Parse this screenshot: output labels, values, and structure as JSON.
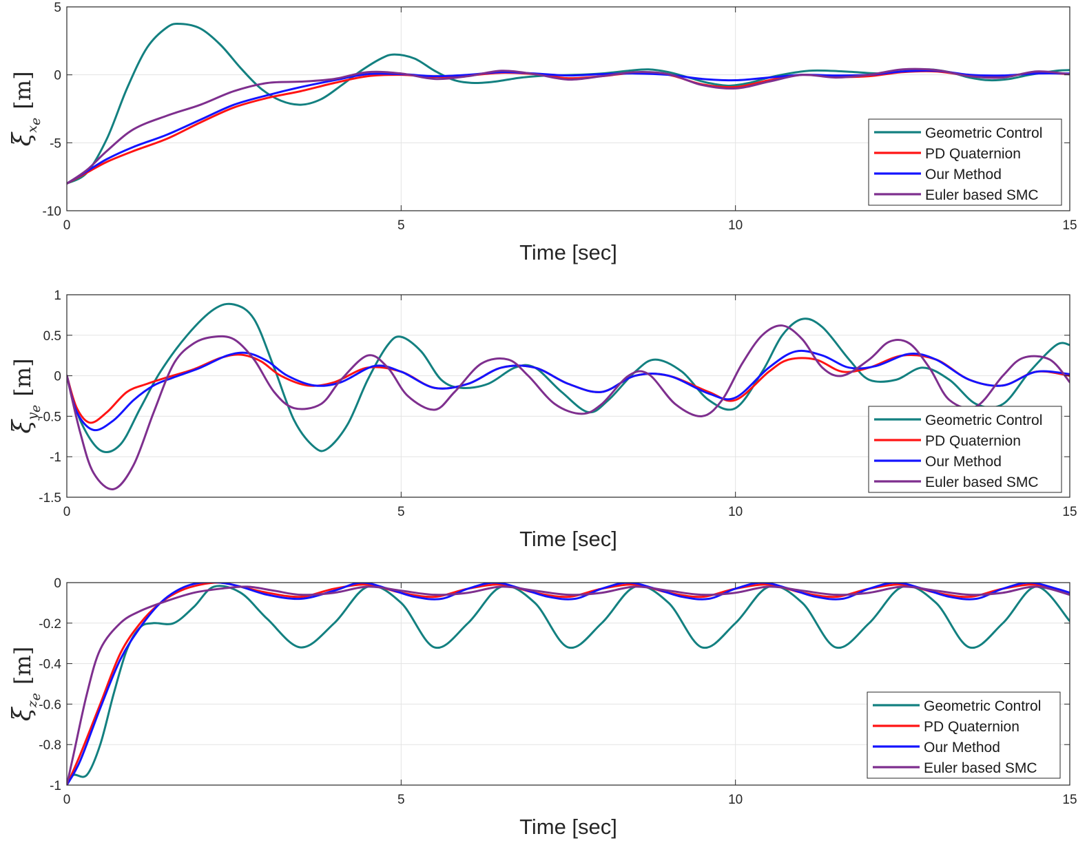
{
  "chart_data": [
    {
      "type": "line",
      "ylabel": "ξ",
      "ylabel_sub": "x_e",
      "ylabel_unit": "[m]",
      "xlabel": "Time [sec]",
      "xlim": [
        0,
        15
      ],
      "ylim": [
        -10,
        5
      ],
      "xticks": [
        0,
        5,
        10,
        15
      ],
      "yticks": [
        -10,
        -5,
        0,
        5
      ],
      "grid": true,
      "legend_position": "bottom-right",
      "series": [
        {
          "name": "Geometric Control",
          "color": "#138080",
          "x": [
            0,
            0.3,
            0.6,
            0.9,
            1.2,
            1.5,
            1.7,
            2.0,
            2.3,
            2.6,
            2.9,
            3.2,
            3.5,
            3.8,
            4.1,
            4.4,
            4.7,
            4.9,
            5.2,
            5.5,
            5.8,
            6.1,
            6.4,
            6.8,
            7.2,
            7.6,
            8.0,
            8.4,
            8.7,
            9.0,
            9.3,
            9.6,
            9.9,
            10.2,
            10.5,
            10.8,
            11.1,
            11.4,
            11.8,
            12.2,
            12.6,
            12.9,
            13.2,
            13.5,
            13.8,
            14.1,
            14.4,
            14.8,
            15.0
          ],
          "y": [
            -8,
            -7.2,
            -4.7,
            -1.0,
            2.0,
            3.5,
            3.75,
            3.4,
            2.2,
            0.5,
            -1.0,
            -1.9,
            -2.2,
            -1.8,
            -0.8,
            0.3,
            1.2,
            1.5,
            1.2,
            0.3,
            -0.4,
            -0.6,
            -0.5,
            -0.2,
            -0.05,
            0.0,
            0.1,
            0.3,
            0.4,
            0.2,
            -0.2,
            -0.6,
            -0.8,
            -0.6,
            -0.2,
            0.1,
            0.3,
            0.3,
            0.2,
            0.1,
            0.3,
            0.4,
            0.2,
            -0.2,
            -0.4,
            -0.3,
            0.0,
            0.3,
            0.35
          ]
        },
        {
          "name": "PD Quaternion",
          "color": "#ff1414",
          "x": [
            0,
            0.3,
            0.6,
            1.0,
            1.5,
            2.0,
            2.5,
            3.0,
            3.5,
            4.0,
            4.5,
            5.0,
            5.5,
            6.0,
            6.5,
            7.0,
            7.5,
            8.0,
            8.5,
            9.0,
            9.5,
            10.0,
            10.5,
            11.0,
            11.5,
            12.0,
            12.5,
            13.0,
            13.5,
            14.0,
            14.5,
            15.0
          ],
          "y": [
            -8,
            -7.2,
            -6.4,
            -5.6,
            -4.7,
            -3.5,
            -2.4,
            -1.7,
            -1.2,
            -0.6,
            -0.1,
            0.0,
            -0.15,
            -0.05,
            0.15,
            0.05,
            -0.25,
            -0.1,
            0.15,
            0.0,
            -0.7,
            -0.9,
            -0.4,
            0.0,
            -0.15,
            -0.1,
            0.2,
            0.25,
            -0.05,
            -0.1,
            0.15,
            0.05
          ]
        },
        {
          "name": "Our Method",
          "color": "#1414ff",
          "x": [
            0,
            0.3,
            0.6,
            1.0,
            1.5,
            2.0,
            2.5,
            3.0,
            3.5,
            4.0,
            4.5,
            5.0,
            5.5,
            6.0,
            6.5,
            7.0,
            7.5,
            8.0,
            8.5,
            9.0,
            9.5,
            10.0,
            10.5,
            11.0,
            11.5,
            12.0,
            12.5,
            13.0,
            13.5,
            14.0,
            14.5,
            15.0
          ],
          "y": [
            -8,
            -7.1,
            -6.2,
            -5.3,
            -4.4,
            -3.3,
            -2.2,
            -1.5,
            -0.9,
            -0.4,
            0.05,
            0.05,
            -0.1,
            0.0,
            0.2,
            0.1,
            -0.05,
            0.05,
            0.1,
            0.0,
            -0.3,
            -0.4,
            -0.2,
            0.0,
            -0.05,
            0.0,
            0.25,
            0.3,
            0.0,
            -0.05,
            0.1,
            0.1
          ]
        },
        {
          "name": "Euler based SMC",
          "color": "#7e2f8e",
          "x": [
            0,
            0.3,
            0.6,
            1.0,
            1.5,
            2.0,
            2.5,
            3.0,
            3.5,
            4.0,
            4.5,
            5.0,
            5.5,
            6.0,
            6.5,
            7.0,
            7.5,
            8.0,
            8.5,
            9.0,
            9.5,
            10.0,
            10.5,
            11.0,
            11.5,
            12.0,
            12.5,
            13.0,
            13.5,
            14.0,
            14.5,
            15.0
          ],
          "y": [
            -8,
            -7.0,
            -5.6,
            -4.0,
            -3.0,
            -2.2,
            -1.2,
            -0.6,
            -0.5,
            -0.3,
            0.2,
            0.1,
            -0.3,
            -0.1,
            0.3,
            0.05,
            -0.35,
            -0.1,
            0.2,
            0.05,
            -0.75,
            -1.0,
            -0.5,
            0.0,
            -0.2,
            0.0,
            0.4,
            0.35,
            -0.1,
            -0.2,
            0.25,
            0.05
          ]
        }
      ]
    },
    {
      "type": "line",
      "ylabel": "ξ",
      "ylabel_sub": "y_e",
      "ylabel_unit": "[m]",
      "xlabel": "Time [sec]",
      "xlim": [
        0,
        15
      ],
      "ylim": [
        -1.5,
        1
      ],
      "xticks": [
        0,
        5,
        10,
        15
      ],
      "yticks": [
        -1.5,
        -1,
        -0.5,
        0,
        0.5,
        1
      ],
      "grid": true,
      "legend_position": "bottom-right",
      "series": [
        {
          "name": "Geometric Control",
          "color": "#138080",
          "x": [
            0,
            0.2,
            0.5,
            0.8,
            1.1,
            1.4,
            1.8,
            2.2,
            2.5,
            2.8,
            3.1,
            3.4,
            3.7,
            3.9,
            4.2,
            4.5,
            4.8,
            5.0,
            5.3,
            5.6,
            5.9,
            6.3,
            6.7,
            7.0,
            7.4,
            7.8,
            8.1,
            8.5,
            8.8,
            9.2,
            9.6,
            10.0,
            10.4,
            10.7,
            11.0,
            11.3,
            11.7,
            12.0,
            12.4,
            12.8,
            13.2,
            13.6,
            14.0,
            14.4,
            14.8,
            15.0
          ],
          "y": [
            0,
            -0.55,
            -0.92,
            -0.85,
            -0.4,
            0.05,
            0.5,
            0.82,
            0.88,
            0.7,
            0.1,
            -0.55,
            -0.88,
            -0.9,
            -0.6,
            -0.05,
            0.38,
            0.48,
            0.3,
            -0.05,
            -0.15,
            -0.1,
            0.1,
            0.1,
            -0.2,
            -0.45,
            -0.3,
            0.05,
            0.2,
            0.05,
            -0.3,
            -0.4,
            0.05,
            0.5,
            0.7,
            0.6,
            0.2,
            -0.05,
            -0.05,
            0.1,
            -0.05,
            -0.35,
            -0.35,
            0.05,
            0.38,
            0.38
          ]
        },
        {
          "name": "PD Quaternion",
          "color": "#ff1414",
          "x": [
            0,
            0.15,
            0.35,
            0.6,
            0.9,
            1.2,
            1.5,
            1.9,
            2.3,
            2.6,
            2.9,
            3.2,
            3.6,
            4.0,
            4.5,
            5.0,
            5.5,
            6.0,
            6.5,
            7.0,
            7.5,
            8.0,
            8.5,
            9.0,
            9.6,
            10.0,
            10.5,
            10.8,
            11.2,
            11.6,
            12.0,
            12.5,
            13.0,
            13.5,
            14.0,
            14.5,
            15.0
          ],
          "y": [
            0,
            -0.4,
            -0.58,
            -0.45,
            -0.2,
            -0.1,
            -0.02,
            0.08,
            0.22,
            0.26,
            0.18,
            0.0,
            -0.12,
            -0.08,
            0.1,
            0.05,
            -0.15,
            -0.1,
            0.1,
            0.1,
            -0.1,
            -0.2,
            0.0,
            0.0,
            -0.2,
            -0.3,
            0.05,
            0.2,
            0.2,
            0.05,
            0.1,
            0.25,
            0.2,
            -0.05,
            -0.12,
            0.05,
            0.0
          ]
        },
        {
          "name": "Our Method",
          "color": "#1414ff",
          "x": [
            0,
            0.15,
            0.4,
            0.7,
            1.0,
            1.3,
            1.6,
            2.0,
            2.4,
            2.7,
            3.0,
            3.3,
            3.7,
            4.1,
            4.6,
            5.0,
            5.5,
            6.0,
            6.5,
            7.0,
            7.5,
            8.0,
            8.5,
            9.0,
            9.6,
            10.0,
            10.5,
            10.9,
            11.3,
            11.7,
            12.1,
            12.6,
            13.0,
            13.5,
            14.0,
            14.5,
            15.0
          ],
          "y": [
            0,
            -0.45,
            -0.67,
            -0.55,
            -0.3,
            -0.12,
            -0.02,
            0.1,
            0.25,
            0.28,
            0.18,
            0.0,
            -0.12,
            -0.08,
            0.12,
            0.05,
            -0.15,
            -0.1,
            0.1,
            0.1,
            -0.1,
            -0.2,
            0.0,
            0.0,
            -0.22,
            -0.27,
            0.1,
            0.3,
            0.25,
            0.1,
            0.12,
            0.27,
            0.2,
            -0.05,
            -0.12,
            0.05,
            0.02
          ]
        },
        {
          "name": "Euler based SMC",
          "color": "#7e2f8e",
          "x": [
            0,
            0.2,
            0.4,
            0.7,
            1.0,
            1.3,
            1.6,
            1.9,
            2.2,
            2.5,
            2.8,
            3.1,
            3.4,
            3.8,
            4.1,
            4.5,
            4.8,
            5.1,
            5.5,
            5.8,
            6.2,
            6.6,
            6.9,
            7.3,
            7.7,
            8.0,
            8.4,
            8.7,
            9.1,
            9.5,
            9.8,
            10.1,
            10.4,
            10.7,
            11.0,
            11.3,
            11.6,
            12.0,
            12.3,
            12.6,
            12.9,
            13.2,
            13.6,
            14.0,
            14.3,
            14.7,
            15.0
          ],
          "y": [
            0,
            -0.7,
            -1.2,
            -1.4,
            -1.1,
            -0.45,
            0.15,
            0.4,
            0.48,
            0.45,
            0.2,
            -0.2,
            -0.4,
            -0.35,
            -0.05,
            0.25,
            0.1,
            -0.25,
            -0.42,
            -0.2,
            0.15,
            0.2,
            0.0,
            -0.35,
            -0.47,
            -0.35,
            0.0,
            0.02,
            -0.35,
            -0.5,
            -0.3,
            0.15,
            0.5,
            0.62,
            0.45,
            0.1,
            0.0,
            0.2,
            0.42,
            0.4,
            0.1,
            -0.3,
            -0.38,
            0.0,
            0.22,
            0.2,
            -0.08
          ]
        }
      ]
    },
    {
      "type": "line",
      "ylabel": "ξ",
      "ylabel_sub": "z_e",
      "ylabel_unit": "[m]",
      "xlabel": "Time [sec]",
      "xlim": [
        0,
        15
      ],
      "ylim": [
        -1,
        0
      ],
      "xticks": [
        0,
        5,
        10,
        15
      ],
      "yticks": [
        -1,
        -0.8,
        -0.6,
        -0.4,
        -0.2,
        0
      ],
      "grid": true,
      "legend_position": "bottom-right",
      "series": [
        {
          "name": "Geometric Control",
          "color": "#138080",
          "x": [
            0,
            0.1,
            0.3,
            0.5,
            0.7,
            0.9,
            1.1,
            1.3,
            1.6,
            1.9,
            2.2,
            2.6,
            3.0,
            3.5,
            4.0,
            4.5,
            5.0,
            5.5,
            6.0,
            6.5,
            7.0,
            7.5,
            8.0,
            8.5,
            9.0,
            9.5,
            10.0,
            10.5,
            11.0,
            11.5,
            12.0,
            12.5,
            13.0,
            13.5,
            14.0,
            14.5,
            15.0
          ],
          "y": [
            -1,
            -0.95,
            -0.95,
            -0.8,
            -0.55,
            -0.33,
            -0.22,
            -0.2,
            -0.2,
            -0.12,
            -0.02,
            -0.05,
            -0.18,
            -0.32,
            -0.2,
            -0.02,
            -0.1,
            -0.32,
            -0.2,
            -0.02,
            -0.1,
            -0.32,
            -0.2,
            -0.02,
            -0.1,
            -0.32,
            -0.2,
            -0.02,
            -0.1,
            -0.32,
            -0.2,
            -0.02,
            -0.1,
            -0.32,
            -0.2,
            -0.02,
            -0.19
          ]
        },
        {
          "name": "PD Quaternion",
          "color": "#ff1414",
          "x": [
            0,
            0.2,
            0.5,
            0.8,
            1.1,
            1.4,
            1.7,
            2.0,
            2.3,
            2.6,
            3.0,
            3.5,
            4.0,
            4.5,
            5.0,
            5.5,
            6.0,
            6.5,
            7.0,
            7.5,
            8.0,
            8.5,
            9.0,
            9.5,
            10.0,
            10.5,
            11.0,
            11.5,
            12.0,
            12.5,
            13.0,
            13.5,
            14.0,
            14.5,
            15.0
          ],
          "y": [
            -1,
            -0.85,
            -0.6,
            -0.35,
            -0.2,
            -0.1,
            -0.04,
            -0.01,
            0.0,
            -0.02,
            -0.05,
            -0.07,
            -0.03,
            -0.01,
            -0.05,
            -0.07,
            -0.03,
            -0.01,
            -0.05,
            -0.07,
            -0.03,
            -0.01,
            -0.05,
            -0.07,
            -0.03,
            -0.01,
            -0.05,
            -0.07,
            -0.03,
            -0.01,
            -0.05,
            -0.07,
            -0.03,
            -0.01,
            -0.05
          ]
        },
        {
          "name": "Our Method",
          "color": "#1414ff",
          "x": [
            0,
            0.2,
            0.5,
            0.8,
            1.1,
            1.4,
            1.7,
            2.0,
            2.3,
            2.6,
            3.0,
            3.5,
            4.0,
            4.4,
            4.8,
            5.2,
            5.6,
            6.0,
            6.4,
            6.8,
            7.2,
            7.6,
            8.0,
            8.4,
            8.8,
            9.2,
            9.6,
            10.0,
            10.4,
            10.8,
            11.2,
            11.6,
            12.0,
            12.4,
            12.8,
            13.2,
            13.6,
            14.0,
            14.4,
            14.8,
            15.0
          ],
          "y": [
            -1,
            -0.88,
            -0.62,
            -0.38,
            -0.22,
            -0.1,
            -0.03,
            0.0,
            0.0,
            -0.02,
            -0.06,
            -0.08,
            -0.04,
            0.0,
            -0.03,
            -0.07,
            -0.08,
            -0.03,
            0.0,
            -0.03,
            -0.07,
            -0.08,
            -0.03,
            0.0,
            -0.03,
            -0.07,
            -0.08,
            -0.03,
            0.0,
            -0.03,
            -0.07,
            -0.08,
            -0.03,
            0.0,
            -0.03,
            -0.07,
            -0.08,
            -0.03,
            0.0,
            -0.03,
            -0.05
          ]
        },
        {
          "name": "Euler based SMC",
          "color": "#7e2f8e",
          "x": [
            0,
            0.1,
            0.3,
            0.5,
            0.8,
            1.1,
            1.5,
            1.9,
            2.3,
            2.7,
            3.1,
            3.5,
            4.0,
            4.5,
            5.0,
            5.5,
            6.0,
            6.5,
            7.0,
            7.5,
            8.0,
            8.5,
            9.0,
            9.5,
            10.0,
            10.5,
            11.0,
            11.5,
            12.0,
            12.5,
            13.0,
            13.5,
            14.0,
            14.5,
            15.0
          ],
          "y": [
            -1,
            -0.85,
            -0.55,
            -0.33,
            -0.2,
            -0.14,
            -0.09,
            -0.05,
            -0.03,
            -0.02,
            -0.04,
            -0.06,
            -0.05,
            -0.02,
            -0.04,
            -0.06,
            -0.05,
            -0.02,
            -0.04,
            -0.06,
            -0.05,
            -0.02,
            -0.04,
            -0.06,
            -0.05,
            -0.02,
            -0.04,
            -0.06,
            -0.05,
            -0.02,
            -0.04,
            -0.06,
            -0.05,
            -0.02,
            -0.06
          ]
        }
      ]
    }
  ]
}
